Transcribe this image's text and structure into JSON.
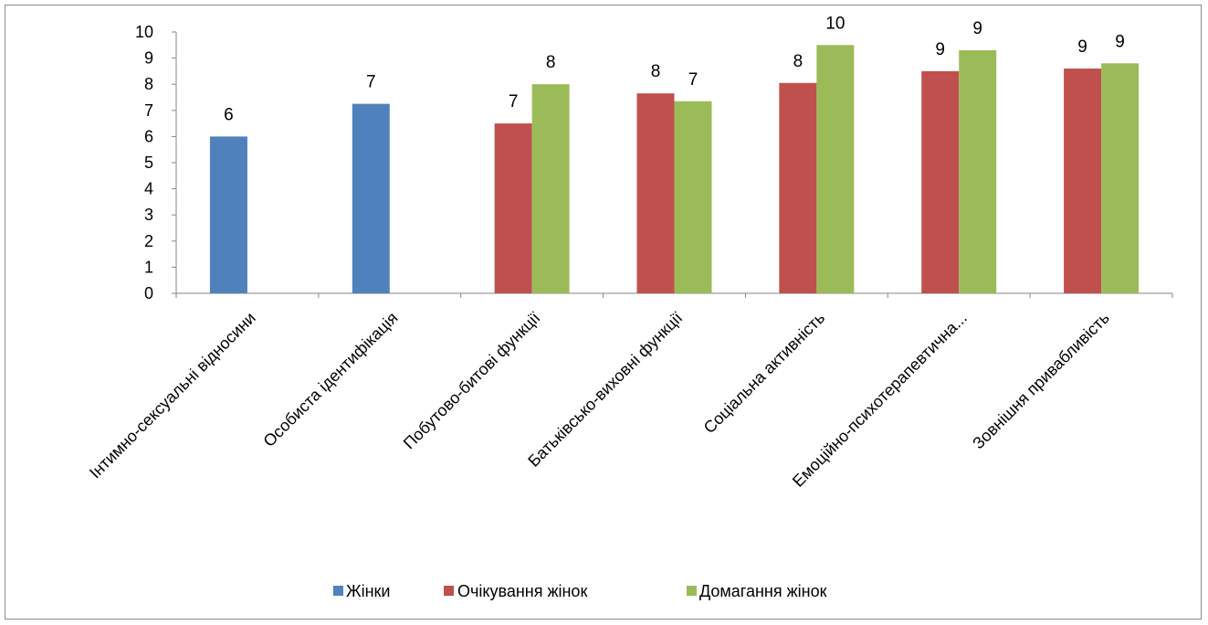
{
  "chart_data": {
    "type": "bar",
    "categories": [
      "Інтимно-сексуальні відносини",
      "Особиста ідентифікація",
      "Побутово-битові функції",
      "Батьківсько-виховні функції",
      "Соціальна активність",
      "Емоційно-психотерапевтична...",
      "Зовнішня привабливість"
    ],
    "series": [
      {
        "name": "Жінки",
        "color": "#4F81BD",
        "values": [
          6.0,
          7.25,
          null,
          null,
          null,
          null,
          null
        ],
        "labels": [
          "6",
          "7",
          "",
          "",
          "",
          "",
          ""
        ]
      },
      {
        "name": "Очікування жінок",
        "color": "#C0504D",
        "values": [
          null,
          null,
          6.5,
          7.65,
          8.05,
          8.5,
          8.6
        ],
        "labels": [
          "",
          "",
          "7",
          "8",
          "8",
          "9",
          "9"
        ]
      },
      {
        "name": "Домагання жінок",
        "color": "#9BBB59",
        "values": [
          null,
          null,
          8.0,
          7.35,
          9.5,
          9.3,
          8.8
        ],
        "labels": [
          "",
          "",
          "8",
          "7",
          "10",
          "9",
          "9"
        ]
      }
    ],
    "yticks": [
      "0",
      "1",
      "2",
      "3",
      "4",
      "5",
      "6",
      "7",
      "8",
      "9",
      "10"
    ],
    "ylim": [
      0,
      10
    ],
    "grid": false,
    "legend_position": "bottom"
  }
}
